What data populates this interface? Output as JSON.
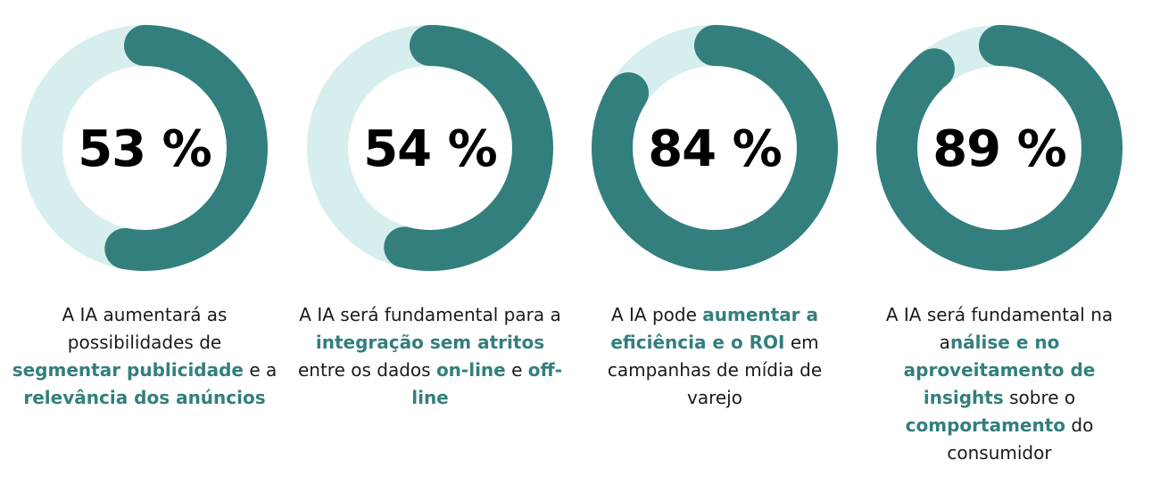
{
  "colors": {
    "track": "#d6eeee",
    "fill": "#337f7d",
    "highlight": "#337f7d",
    "text": "#1a1a1a"
  },
  "chart_data": {
    "type": "donut",
    "title": "",
    "unit": "%",
    "items": [
      {
        "value": 53,
        "label": "53 %",
        "caption": [
          {
            "text": "A IA aumentará as possibilidades de ",
            "highlight": false
          },
          {
            "text": "segmentar publicidade",
            "highlight": true
          },
          {
            "text": " e a ",
            "highlight": false
          },
          {
            "text": "relevância dos anúncios",
            "highlight": true
          }
        ]
      },
      {
        "value": 54,
        "label": "54 %",
        "caption": [
          {
            "text": "A IA será fundamental para a ",
            "highlight": false
          },
          {
            "text": "integração sem atritos",
            "highlight": true
          },
          {
            "text": " entre os dados ",
            "highlight": false
          },
          {
            "text": "on-line",
            "highlight": true
          },
          {
            "text": " e ",
            "highlight": false
          },
          {
            "text": "off-line",
            "highlight": true
          }
        ]
      },
      {
        "value": 84,
        "label": "84 %",
        "caption": [
          {
            "text": "A IA pode ",
            "highlight": false
          },
          {
            "text": "aumentar a eficiência e o ROI",
            "highlight": true
          },
          {
            "text": " em campanhas de mídia de varejo",
            "highlight": false
          }
        ]
      },
      {
        "value": 89,
        "label": "89 %",
        "caption": [
          {
            "text": "A IA será fundamental na a",
            "highlight": false
          },
          {
            "text": "nálise e no aproveitamento de insights",
            "highlight": true
          },
          {
            "text": " sobre o ",
            "highlight": false
          },
          {
            "text": "comportamento",
            "highlight": true
          },
          {
            "text": " do consumidor",
            "highlight": false
          }
        ]
      }
    ]
  }
}
